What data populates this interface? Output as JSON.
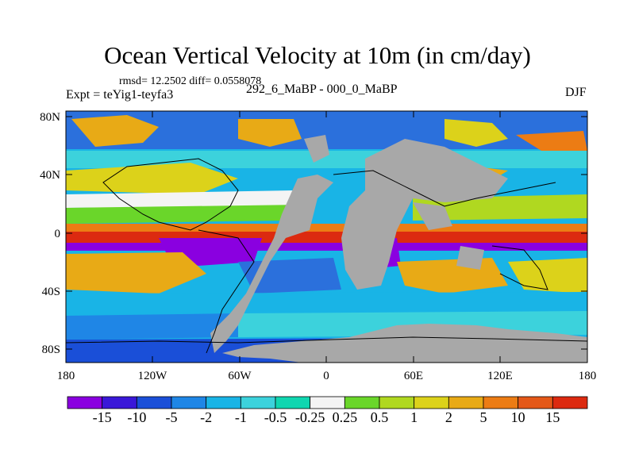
{
  "title": "Ocean Vertical Velocity at 10m (in cm/day)",
  "stats_text": "rmsd= 12.2502 diff= 0.0558078",
  "experiment_label": "Expt = teYig1-teyfa3",
  "center_label": "292_6_MaBP - 000_0_MaBP",
  "season_label": "DJF",
  "y_axis_labels": [
    "80N",
    "40N",
    "0",
    "40S",
    "80S"
  ],
  "x_axis_labels": [
    "180",
    "120W",
    "60W",
    "0",
    "60E",
    "120E",
    "180"
  ],
  "colorbar": {
    "labels": [
      "-15",
      "-10",
      "-5",
      "-2",
      "-1",
      "-0.5",
      "-0.25",
      "0.25",
      "0.5",
      "1",
      "2",
      "5",
      "10",
      "15"
    ],
    "colors": [
      "#8a00e0",
      "#3a18d8",
      "#1a4fd8",
      "#1f86e6",
      "#19b4e6",
      "#3cd2dc",
      "#10d6b0",
      "#f4f4f4",
      "#6ad62a",
      "#b0d820",
      "#dcd21a",
      "#e8aa16",
      "#ec7c14",
      "#e45818",
      "#dc2a10"
    ]
  },
  "colors": {
    "land": "#a8a8a8",
    "equator_band": "#dc2a10",
    "coastline": "#000000"
  }
}
